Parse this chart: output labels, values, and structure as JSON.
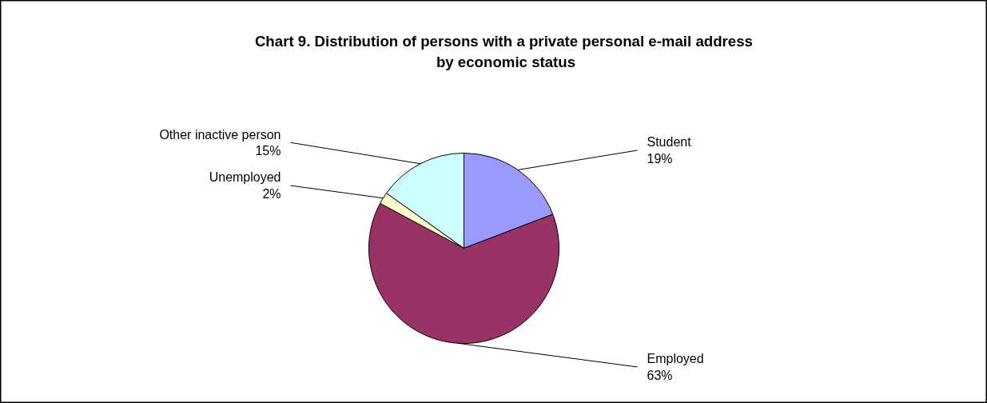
{
  "chart_data": {
    "type": "pie",
    "title": "Chart 9.  Distribution of persons with a private personal e-mail address by economic status",
    "categories": [
      "Student",
      "Employed",
      "Unemployed",
      "Other inactive person"
    ],
    "values": [
      19,
      63,
      2,
      15
    ],
    "colors": [
      "#9999ff",
      "#993366",
      "#ffffcc",
      "#ccffff"
    ],
    "value_labels": [
      "19%",
      "63%",
      "2%",
      "15%"
    ]
  }
}
